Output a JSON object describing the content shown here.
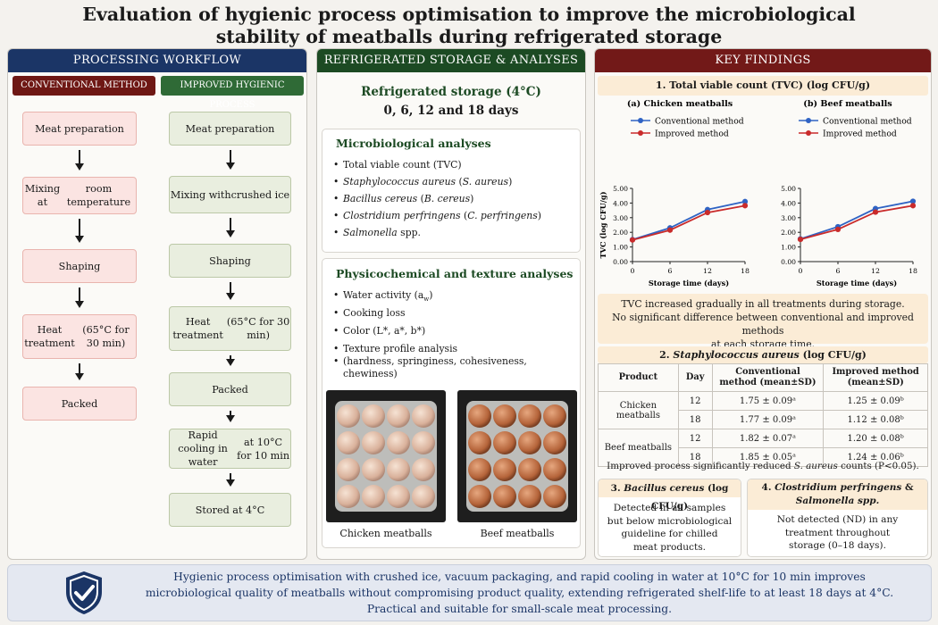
{
  "title": {
    "line1": "Evaluation of hygienic process optimisation to improve the microbiological",
    "line2": "stability of meatballs during refrigerated storage"
  },
  "workflow": {
    "header": "PROCESSING WORKFLOW",
    "conventional": {
      "label": "CONVENTIONAL METHOD",
      "steps": [
        "Meat preparation",
        "Mixing at\nroom temperature",
        "Shaping",
        "Heat treatment\n(65°C for 30 min)",
        "Packed"
      ]
    },
    "improved": {
      "label": "IMPROVED HYGIENIC PROCESS",
      "steps": [
        "Meat preparation",
        "Mixing with\ncrushed ice",
        "Shaping",
        "Heat treatment\n(65°C for 30 min)",
        "Packed",
        "Rapid cooling in water\nat 10°C for 10 min",
        "Stored at 4°C"
      ]
    }
  },
  "storage": {
    "header": "REFRIGERATED STORAGE & ANALYSES",
    "title": "Refrigerated storage (4°C)",
    "days": "0, 6, 12 and 18 days",
    "micro_title": "Microbiological analyses",
    "physico_title": "Physicochemical and texture analyses",
    "texture_sub": "(hardness, springiness, cohesiveness, chewiness)",
    "chicken_caption": "Chicken meatballs",
    "beef_caption": "Beef meatballs"
  },
  "findings": {
    "header": "KEY FINDINGS",
    "tvc_title": "1. Total viable count (TVC) (log CFU/g)",
    "tvc_note": [
      "TVC increased gradually in all treatments during storage.",
      "No significant difference between conventional and improved methods",
      "at each storage time."
    ],
    "sa_title_pre": "2. ",
    "sa_title_it": "Staphylococcus aureus",
    "sa_title_post": " (log CFU/g)",
    "table": {
      "headers": [
        "Product",
        "Day",
        "Conventional method (mean±SD)",
        "Improved method (mean±SD)"
      ],
      "rows": [
        {
          "product": "Chicken meatballs",
          "day": "12",
          "conv": "1.75 ± 0.09ᵃ",
          "imp": "1.25 ± 0.09ᵇ"
        },
        {
          "product": "",
          "day": "18",
          "conv": "1.77 ± 0.09ᵃ",
          "imp": "1.12 ± 0.08ᵇ"
        },
        {
          "product": "Beef meatballs",
          "day": "12",
          "conv": "1.82 ± 0.07ᵃ",
          "imp": "1.20 ± 0.08ᵇ"
        },
        {
          "product": "",
          "day": "18",
          "conv": "1.85 ± 0.05ᵃ",
          "imp": "1.24 ± 0.06ᵇ"
        }
      ],
      "note_pre": "Improved process significantly reduced ",
      "note_it": "S. aureus",
      "note_post": " counts (P<0.05)."
    },
    "bc_title_pre": "3. ",
    "bc_title_it": "Bacillus cereus",
    "bc_title_post": " (log CFU/g)",
    "bc_text": [
      "Detected in all samples",
      "but below microbiological",
      "guideline for chilled",
      "meat products."
    ],
    "cp_title_pre": "4. ",
    "cp_title_it1": "Clostridium perfringens",
    "cp_title_mid": " &",
    "cp_title_it2": "Salmonella spp.",
    "cp_text": [
      "Not detected (ND) in any",
      "treatment throughout",
      "storage (0–18 days)."
    ]
  },
  "conclusion": [
    "Hygienic process optimisation with crushed ice, vacuum packaging, and rapid cooling in water at 10°C for 10 min improves",
    "microbiological quality of meatballs without compromising product quality, extending refrigerated shelf-life to at least 18 days at 4°C.",
    "Practical and suitable for small-scale meat processing."
  ],
  "colors": {
    "conventional": "#2f63c4",
    "improved": "#c92b2b",
    "navy": "#1b3566",
    "green": "#1c4a23",
    "maroon": "#721918"
  },
  "chart_data": [
    {
      "type": "line",
      "title": "(a) Chicken meatballs",
      "xlabel": "Storage time (days)",
      "ylabel": "TVC (log CFU/g)",
      "x": [
        0,
        6,
        12,
        18
      ],
      "xlim": [
        0,
        18
      ],
      "ylim": [
        0,
        5
      ],
      "yticks": [
        "0.00",
        "1.00",
        "2.00",
        "3.00",
        "4.00",
        "5.00"
      ],
      "series": [
        {
          "name": "Conventional method",
          "color": "#2f63c4",
          "values": [
            1.5,
            2.3,
            3.55,
            4.1
          ]
        },
        {
          "name": "Improved method",
          "color": "#c92b2b",
          "values": [
            1.48,
            2.15,
            3.35,
            3.82
          ]
        }
      ],
      "legend": "top",
      "grid": false
    },
    {
      "type": "line",
      "title": "(b) Beef meatballs",
      "xlabel": "Storage time (days)",
      "ylabel": "",
      "x": [
        0,
        6,
        12,
        18
      ],
      "xlim": [
        0,
        18
      ],
      "ylim": [
        0,
        5
      ],
      "yticks": [
        "0.00",
        "1.00",
        "2.00",
        "3.00",
        "4.00",
        "5.00"
      ],
      "series": [
        {
          "name": "Conventional method",
          "color": "#2f63c4",
          "values": [
            1.55,
            2.38,
            3.62,
            4.12
          ]
        },
        {
          "name": "Improved method",
          "color": "#c92b2b",
          "values": [
            1.52,
            2.2,
            3.38,
            3.82
          ]
        }
      ],
      "legend": "top",
      "grid": false
    }
  ]
}
